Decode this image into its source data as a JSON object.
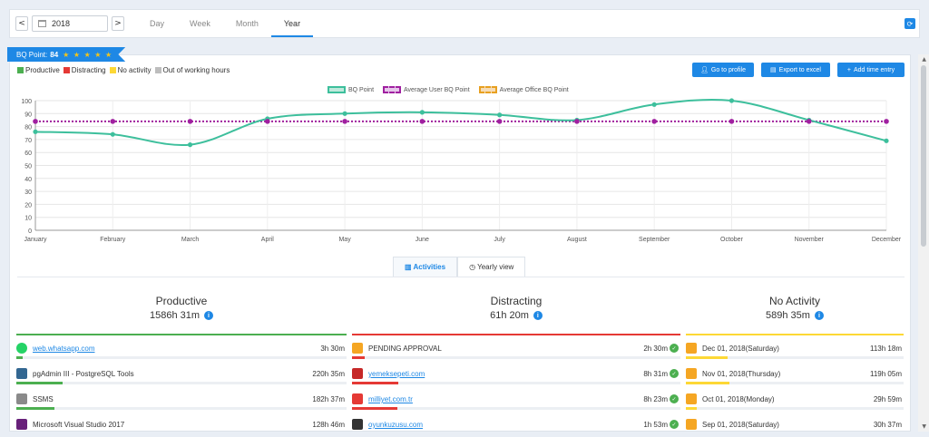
{
  "toolbar": {
    "prev": "<",
    "next": ">",
    "year": "2018",
    "tabs": [
      {
        "label": "Day"
      },
      {
        "label": "Week"
      },
      {
        "label": "Month"
      },
      {
        "label": "Year"
      }
    ],
    "active_tab": "Year"
  },
  "bq": {
    "label": "BQ Point:",
    "value": "84",
    "stars": "★ ★ ★ ★ ★"
  },
  "legend": {
    "productive": "Productive",
    "distracting": "Distracting",
    "no_activity": "No activity",
    "out_of_hours": "Out of working hours"
  },
  "buttons": {
    "profile": "Go to profile",
    "excel": "Export to excel",
    "add_time": "Add time entry"
  },
  "colors": {
    "accent": "#1e88e5",
    "productive": "#4caf50",
    "distracting": "#e53935",
    "no_activity": "#fdd835",
    "out_of_hours": "#bdbdbd",
    "bq_line": "#3dbf9c",
    "user_avg": "#a020a0",
    "office_avg": "#e8a020"
  },
  "chart_data": {
    "type": "line",
    "categories": [
      "January",
      "February",
      "March",
      "April",
      "May",
      "June",
      "July",
      "August",
      "September",
      "October",
      "November",
      "December"
    ],
    "ylim": [
      0,
      100
    ],
    "yticks": [
      0,
      10,
      20,
      30,
      40,
      50,
      60,
      70,
      80,
      90,
      100
    ],
    "series": [
      {
        "name": "BQ Point",
        "values": [
          76,
          74,
          66,
          86,
          90,
          91,
          89,
          85,
          97,
          100,
          85,
          69
        ]
      },
      {
        "name": "Average User BQ Point",
        "values": [
          84,
          84,
          84,
          84,
          84,
          84,
          84,
          84,
          84,
          84,
          84,
          84
        ]
      },
      {
        "name": "Average Office BQ Point",
        "values": [
          84,
          84,
          84,
          84,
          84,
          84,
          84,
          84,
          84,
          84,
          84,
          84
        ]
      }
    ],
    "grid": true,
    "legend": "top-center"
  },
  "subtabs": {
    "activities": "Activities",
    "yearly": "Yearly view"
  },
  "columns": [
    {
      "title": "Productive",
      "total": "1586h 31m",
      "color": "#4caf50",
      "rows": [
        {
          "name": "web.whatsapp.com",
          "time": "3h 30m",
          "link": true,
          "fill": 0.02
        },
        {
          "name": "pgAdmin III - PostgreSQL Tools",
          "time": "220h 35m",
          "link": false,
          "fill": 0.14
        },
        {
          "name": "SSMS",
          "time": "182h 37m",
          "link": false,
          "fill": 0.115
        },
        {
          "name": "Microsoft Visual Studio 2017",
          "time": "128h 46m",
          "link": false,
          "fill": 0.08
        }
      ]
    },
    {
      "title": "Distracting",
      "total": "61h 20m",
      "color": "#e53935",
      "rows": [
        {
          "name": "PENDING APPROVAL",
          "time": "2h 30m",
          "link": false,
          "fill": 0.04
        },
        {
          "name": "yemeksepeti.com",
          "time": "8h 31m",
          "link": true,
          "fill": 0.14
        },
        {
          "name": "milliyet.com.tr",
          "time": "8h 23m",
          "link": true,
          "fill": 0.137
        },
        {
          "name": "oyunkuzusu.com",
          "time": "1h 53m",
          "link": true,
          "fill": 0.03
        }
      ]
    },
    {
      "title": "No Activity",
      "total": "589h 35m",
      "color": "#fdd835",
      "rows": [
        {
          "name": "Dec 01, 2018(Saturday)",
          "time": "113h 18m",
          "link": false,
          "fill": 0.19
        },
        {
          "name": "Nov 01, 2018(Thursday)",
          "time": "119h 05m",
          "link": false,
          "fill": 0.2
        },
        {
          "name": "Oct 01, 2018(Monday)",
          "time": "29h 59m",
          "link": false,
          "fill": 0.05
        },
        {
          "name": "Sep 01, 2018(Saturday)",
          "time": "30h 37m",
          "link": false,
          "fill": 0.052
        }
      ]
    }
  ]
}
